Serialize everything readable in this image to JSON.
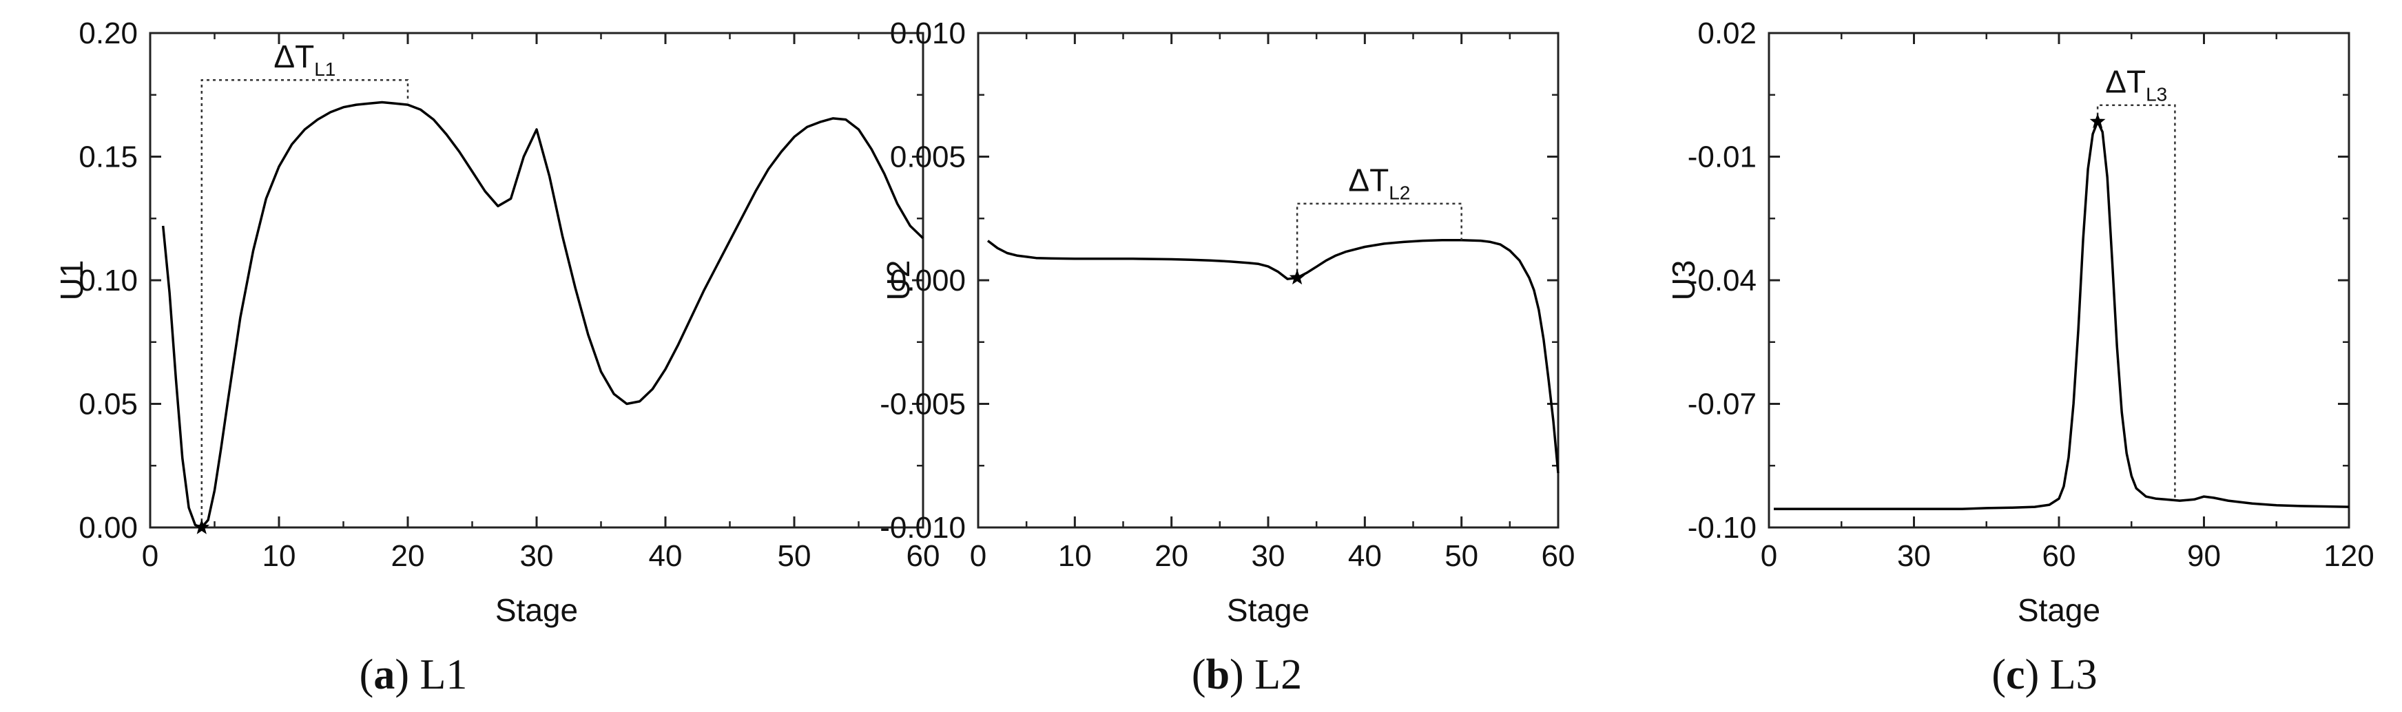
{
  "chart_data": [
    {
      "type": "line",
      "caption_letter": "a",
      "caption_text": "L1",
      "xlabel": "Stage",
      "ylabel": "U1",
      "xlim": [
        0,
        60
      ],
      "ylim": [
        0,
        0.2
      ],
      "xticks": [
        0,
        10,
        20,
        30,
        40,
        50,
        60
      ],
      "yticks": [
        0.0,
        0.05,
        0.1,
        0.15,
        0.2
      ],
      "xtick_labels": [
        "0",
        "10",
        "20",
        "30",
        "40",
        "50",
        "60"
      ],
      "ytick_labels": [
        "0.00",
        "0.05",
        "0.10",
        "0.15",
        "0.20"
      ],
      "series": [
        {
          "x": [
            1,
            1.5,
            2,
            2.5,
            3,
            3.5,
            4,
            4.5,
            5,
            5.5,
            6,
            7,
            8,
            9,
            10,
            11,
            12,
            13,
            14,
            15,
            16,
            17,
            18,
            19,
            20,
            21,
            22,
            23,
            24,
            25,
            26,
            27,
            28,
            29,
            30,
            31,
            32,
            33,
            34,
            35,
            36,
            37,
            38,
            39,
            40,
            41,
            42,
            43,
            44,
            45,
            46,
            47,
            48,
            49,
            50,
            51,
            52,
            53,
            54,
            55,
            56,
            57,
            58,
            59,
            60
          ],
          "y": [
            0.122,
            0.095,
            0.06,
            0.028,
            0.008,
            0.001,
            0.0,
            0.003,
            0.015,
            0.032,
            0.05,
            0.085,
            0.112,
            0.133,
            0.146,
            0.155,
            0.161,
            0.165,
            0.168,
            0.17,
            0.171,
            0.1715,
            0.172,
            0.1715,
            0.171,
            0.169,
            0.165,
            0.159,
            0.152,
            0.144,
            0.136,
            0.13,
            0.133,
            0.15,
            0.161,
            0.142,
            0.118,
            0.097,
            0.078,
            0.063,
            0.054,
            0.05,
            0.051,
            0.056,
            0.064,
            0.074,
            0.085,
            0.096,
            0.106,
            0.116,
            0.126,
            0.136,
            0.145,
            0.152,
            0.158,
            0.162,
            0.164,
            0.1655,
            0.165,
            0.161,
            0.153,
            0.143,
            0.131,
            0.122,
            0.117
          ]
        }
      ],
      "markers": [
        {
          "x": 4,
          "y": 0.0,
          "symbol": "star"
        }
      ],
      "annotations": [
        {
          "label_main": "ΔT",
          "label_sub": "L1",
          "bracket": {
            "x_start": 4,
            "x_end": 20,
            "y_start": 0.0,
            "y_end": 0.172,
            "y_top": 0.181
          }
        }
      ]
    },
    {
      "type": "line",
      "caption_letter": "b",
      "caption_text": "L2",
      "xlabel": "Stage",
      "ylabel": "U2",
      "xlim": [
        0,
        60
      ],
      "ylim": [
        -0.01,
        0.01
      ],
      "xticks": [
        0,
        10,
        20,
        30,
        40,
        50,
        60
      ],
      "yticks": [
        -0.01,
        -0.005,
        0.0,
        0.005,
        0.01
      ],
      "xtick_labels": [
        "0",
        "10",
        "20",
        "30",
        "40",
        "50",
        "60"
      ],
      "ytick_labels": [
        "-0.010",
        "-0.005",
        "0.000",
        "0.005",
        "0.010"
      ],
      "series": [
        {
          "x": [
            1,
            2,
            3,
            4,
            5,
            6,
            8,
            10,
            12,
            14,
            16,
            18,
            20,
            22,
            24,
            26,
            28,
            29,
            30,
            31,
            32,
            33,
            34,
            35,
            36,
            37,
            38,
            40,
            42,
            44,
            46,
            48,
            50,
            52,
            53,
            54,
            55,
            56,
            57,
            57.5,
            58,
            58.5,
            59,
            59.5,
            60
          ],
          "y": [
            0.0016,
            0.0013,
            0.0011,
            0.001,
            0.00095,
            0.0009,
            0.00088,
            0.00087,
            0.00087,
            0.00087,
            0.00087,
            0.00086,
            0.00085,
            0.00083,
            0.0008,
            0.00076,
            0.0007,
            0.00066,
            0.00056,
            0.00035,
            5e-05,
            0.0001,
            0.0003,
            0.00055,
            0.0008,
            0.001,
            0.00115,
            0.00135,
            0.00148,
            0.00155,
            0.0016,
            0.00162,
            0.00162,
            0.0016,
            0.00155,
            0.00145,
            0.0012,
            0.0008,
            0.0001,
            -0.0004,
            -0.0012,
            -0.0024,
            -0.004,
            -0.0057,
            -0.0078
          ]
        }
      ],
      "markers": [
        {
          "x": 33,
          "y": 0.0001,
          "symbol": "star"
        }
      ],
      "annotations": [
        {
          "label_main": "ΔT",
          "label_sub": "L2",
          "bracket": {
            "x_start": 33,
            "x_end": 50,
            "y_start": 0.0001,
            "y_end": 0.00162,
            "y_top": 0.0031
          }
        }
      ]
    },
    {
      "type": "line",
      "caption_letter": "c",
      "caption_text": "L3",
      "xlabel": "Stage",
      "ylabel": "U3",
      "xlim": [
        0,
        120
      ],
      "ylim": [
        -0.1,
        0.02
      ],
      "xticks": [
        0,
        30,
        60,
        90,
        120
      ],
      "yticks": [
        -0.1,
        -0.07,
        -0.04,
        -0.01,
        0.02
      ],
      "xtick_labels": [
        "0",
        "30",
        "60",
        "90",
        "120"
      ],
      "ytick_labels": [
        "-0.10",
        "-0.07",
        "-0.04",
        "-0.01",
        "0.02"
      ],
      "series": [
        {
          "x": [
            1,
            10,
            20,
            30,
            40,
            45,
            50,
            55,
            58,
            60,
            61,
            62,
            63,
            64,
            65,
            66,
            67,
            68,
            69,
            70,
            71,
            72,
            73,
            74,
            75,
            76,
            78,
            80,
            82,
            85,
            88,
            90,
            92,
            95,
            100,
            105,
            110,
            115,
            120
          ],
          "y": [
            -0.0955,
            -0.0955,
            -0.0955,
            -0.0955,
            -0.0955,
            -0.0953,
            -0.0952,
            -0.095,
            -0.0945,
            -0.093,
            -0.09,
            -0.083,
            -0.07,
            -0.052,
            -0.03,
            -0.013,
            -0.0045,
            -0.0015,
            -0.004,
            -0.015,
            -0.035,
            -0.056,
            -0.072,
            -0.082,
            -0.0875,
            -0.0905,
            -0.0925,
            -0.093,
            -0.0932,
            -0.0935,
            -0.0932,
            -0.0925,
            -0.0928,
            -0.0935,
            -0.0942,
            -0.0946,
            -0.0948,
            -0.0949,
            -0.095
          ]
        }
      ],
      "markers": [
        {
          "x": 68,
          "y": -0.0015,
          "symbol": "star"
        }
      ],
      "annotations": [
        {
          "label_main": "ΔT",
          "label_sub": "L3",
          "bracket": {
            "x_start": 68,
            "x_end": 84,
            "y_start": -0.0015,
            "y_end": -0.0935,
            "y_top": 0.0025
          }
        }
      ]
    }
  ]
}
